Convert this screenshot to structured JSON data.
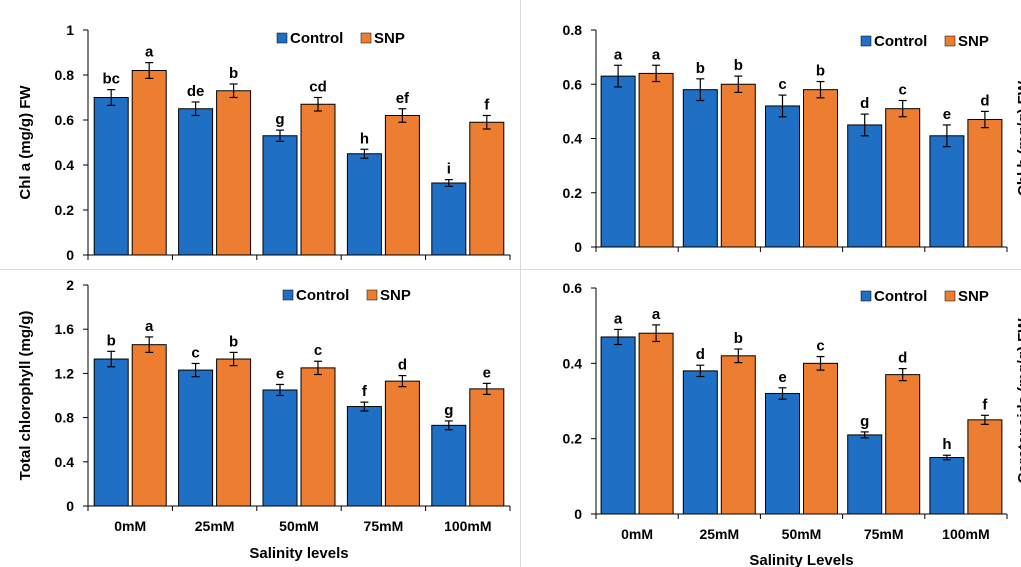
{
  "colors": {
    "control": "#1F6FC5",
    "snp": "#ED7D31",
    "axis": "#000000"
  },
  "legend": {
    "control": "Control",
    "snp": "SNP"
  },
  "chart_data": [
    {
      "type": "bar",
      "panel": "top-left",
      "categories": [
        "0mM",
        "25mM",
        "50mM",
        "75mM",
        "100mM"
      ],
      "show_category_labels": false,
      "ylabel": "Chl a (mg/g) FW",
      "xlabel": "",
      "ylim": [
        0,
        1
      ],
      "yticks": [
        "0",
        "0.2",
        "0.4",
        "0.6",
        "0.8",
        "1"
      ],
      "series": [
        {
          "name": "Control",
          "values": [
            0.7,
            0.65,
            0.53,
            0.45,
            0.32
          ],
          "errors": [
            0.035,
            0.03,
            0.025,
            0.02,
            0.015
          ],
          "letters": [
            "bc",
            "de",
            "g",
            "h",
            "i"
          ]
        },
        {
          "name": "SNP",
          "values": [
            0.82,
            0.73,
            0.67,
            0.62,
            0.59
          ],
          "errors": [
            0.035,
            0.03,
            0.03,
            0.03,
            0.03
          ],
          "letters": [
            "a",
            "b",
            "cd",
            "ef",
            "f"
          ]
        }
      ],
      "legend_position": "top-right"
    },
    {
      "type": "bar",
      "panel": "top-right",
      "categories": [
        "0mM",
        "25mM",
        "50mM",
        "75mM",
        "100mM"
      ],
      "show_category_labels": false,
      "ylabel": "Chl b (mg/g) FW",
      "xlabel": "",
      "ylim": [
        0,
        0.8
      ],
      "yticks": [
        "0",
        "0.2",
        "0.4",
        "0.6",
        "0.8"
      ],
      "series": [
        {
          "name": "Control",
          "values": [
            0.63,
            0.58,
            0.52,
            0.45,
            0.41
          ],
          "errors": [
            0.04,
            0.04,
            0.04,
            0.04,
            0.04
          ],
          "letters": [
            "a",
            "b",
            "c",
            "d",
            "e"
          ]
        },
        {
          "name": "SNP",
          "values": [
            0.64,
            0.6,
            0.58,
            0.51,
            0.47
          ],
          "errors": [
            0.03,
            0.03,
            0.03,
            0.03,
            0.03
          ],
          "letters": [
            "a",
            "b",
            "b",
            "c",
            "d"
          ]
        }
      ],
      "legend_position": "top-right"
    },
    {
      "type": "bar",
      "panel": "bottom-left",
      "categories": [
        "0mM",
        "25mM",
        "50mM",
        "75mM",
        "100mM"
      ],
      "show_category_labels": true,
      "ylabel": "Total chlorophyll (mg/g)",
      "xlabel": "Salinity levels",
      "ylim": [
        0,
        2
      ],
      "yticks": [
        "0",
        "0.4",
        "0.8",
        "1.2",
        "1.6",
        "2"
      ],
      "series": [
        {
          "name": "Control",
          "values": [
            1.33,
            1.23,
            1.05,
            0.9,
            0.73
          ],
          "errors": [
            0.07,
            0.06,
            0.05,
            0.04,
            0.04
          ],
          "letters": [
            "b",
            "c",
            "e",
            "f",
            "g"
          ]
        },
        {
          "name": "SNP",
          "values": [
            1.46,
            1.33,
            1.25,
            1.13,
            1.06
          ],
          "errors": [
            0.07,
            0.06,
            0.06,
            0.05,
            0.05
          ],
          "letters": [
            "a",
            "b",
            "c",
            "d",
            "e"
          ]
        }
      ],
      "legend_position": "top-right"
    },
    {
      "type": "bar",
      "panel": "bottom-right",
      "categories": [
        "0mM",
        "25mM",
        "50mM",
        "75mM",
        "100mM"
      ],
      "show_category_labels": true,
      "ylabel": "Carotenoids (mg/g) FW",
      "xlabel": "Salinity Levels",
      "ylim": [
        0,
        0.6
      ],
      "yticks": [
        "0",
        "0.2",
        "0.4",
        "0.6"
      ],
      "series": [
        {
          "name": "Control",
          "values": [
            0.47,
            0.38,
            0.32,
            0.21,
            0.15
          ],
          "errors": [
            0.02,
            0.015,
            0.015,
            0.008,
            0.006
          ],
          "letters": [
            "a",
            "d",
            "e",
            "g",
            "h"
          ]
        },
        {
          "name": "SNP",
          "values": [
            0.48,
            0.42,
            0.4,
            0.37,
            0.25
          ],
          "errors": [
            0.022,
            0.018,
            0.018,
            0.016,
            0.012
          ],
          "letters": [
            "a",
            "b",
            "c",
            "d",
            "f"
          ]
        }
      ],
      "legend_position": "top-right"
    }
  ]
}
